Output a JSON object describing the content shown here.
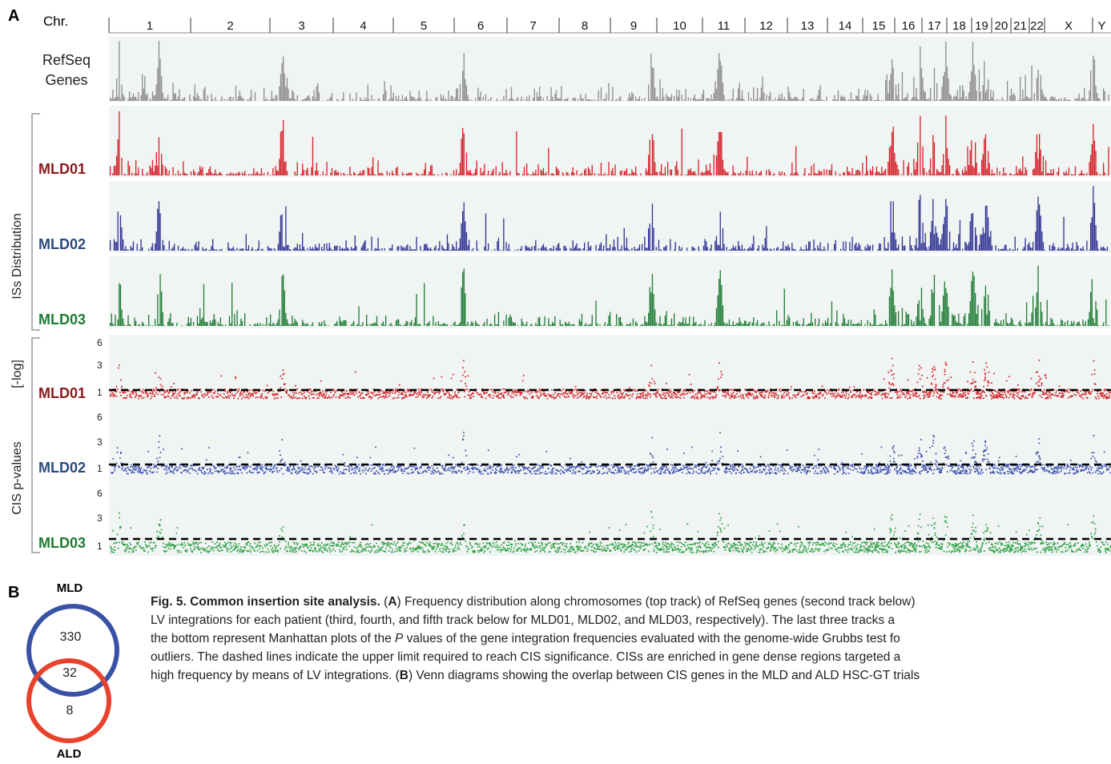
{
  "panel_a_label": "A",
  "panel_b_label": "B",
  "chr_header": "Chr.",
  "chromosomes": [
    "1",
    "2",
    "3",
    "4",
    "5",
    "6",
    "7",
    "8",
    "9",
    "10",
    "11",
    "12",
    "13",
    "14",
    "15",
    "16",
    "17",
    "18",
    "19",
    "20",
    "21",
    "22",
    "X",
    "Y"
  ],
  "tracks": {
    "refseq": {
      "label_line1": "RefSeq",
      "label_line2": "Genes",
      "color": "#8c8c8c"
    },
    "isg": [
      {
        "label": "MLD01",
        "color": "#d42027",
        "label_color": "#8b1a1a"
      },
      {
        "label": "MLD02",
        "color": "#2e3192",
        "label_color": "#2b4a7e"
      },
      {
        "label": "MLD03",
        "color": "#1e7b34",
        "label_color": "#1e7b34"
      }
    ],
    "cis": [
      {
        "label": "MLD01",
        "color": "#d42027",
        "label_color": "#8b1a1a"
      },
      {
        "label": "MLD02",
        "color": "#3a4fb0",
        "label_color": "#2b4a7e"
      },
      {
        "label": "MLD03",
        "color": "#2ca043",
        "label_color": "#1e7b34"
      }
    ],
    "cis_ticks": [
      "6",
      "3",
      "1"
    ]
  },
  "side_labels": {
    "iss_distribution": "ISs Distribution",
    "neg_log": "[-log]",
    "cis_pvalues": "CIS p-values"
  },
  "venn": {
    "top_label": "MLD",
    "bottom_label": "ALD",
    "mld_only": "330",
    "overlap": "32",
    "ald_only": "8",
    "mld_color": "#3a52a5",
    "ald_color": "#e8412c"
  },
  "caption": {
    "title": "Fig. 5. Common insertion site analysis.",
    "open_a": "(",
    "a_letter": "A",
    "a_text": ") Frequency distribution along chromosomes (top track) of RefSeq genes (second track below)",
    "line2": "LV integrations for each patient (third, fourth, and fifth track below for MLD01, MLD02, and MLD03, respectively). The last three tracks a",
    "line3a": "the bottom represent Manhattan plots of the ",
    "line3p": "P",
    "line3b": " values of the gene integration frequencies evaluated with the genome-wide Grubbs test fo",
    "line4": "outliers. The dashed lines indicate the upper limit required to reach CIS significance. CISs are enriched in gene dense regions targeted a",
    "line5a": "high frequency by means of LV integrations. (",
    "line5b": "B",
    "line5c": ") Venn diagrams showing the overlap between CIS genes in the MLD and ALD HSC-GT trials"
  }
}
